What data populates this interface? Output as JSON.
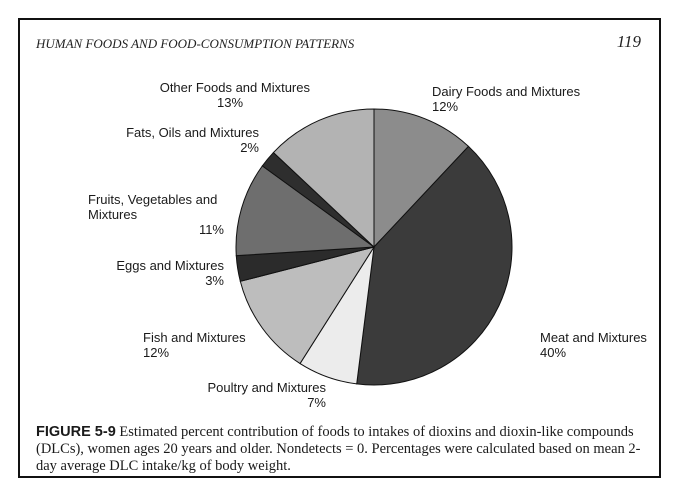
{
  "header": {
    "title": "HUMAN FOODS AND FOOD-CONSUMPTION PATTERNS",
    "page_number": "119"
  },
  "chart_data": {
    "type": "pie",
    "categories": [
      "Dairy Foods and Mixtures",
      "Meat and Mixtures",
      "Poultry and Mixtures",
      "Fish and Mixtures",
      "Eggs and Mixtures",
      "Fruits, Vegetables and Mixtures",
      "Fats, Oils and Mixtures",
      "Other Foods and Mixtures"
    ],
    "values": [
      12,
      40,
      7,
      12,
      3,
      11,
      2,
      13
    ],
    "value_labels": [
      "12%",
      "40%",
      "7%",
      "12%",
      "3%",
      "11%",
      "2%",
      "13%"
    ],
    "colors": [
      "#8c8c8c",
      "#3b3b3b",
      "#ececec",
      "#bdbdbd",
      "#2b2b2b",
      "#6e6e6e",
      "#2e2e2e",
      "#b3b3b3"
    ]
  },
  "caption": {
    "label": "FIGURE 5-9",
    "text": "Estimated percent contribution of foods to intakes of dioxins and dioxin-like compounds (DLCs), women ages 20 years and older. Nondetects = 0. Percentages were calculated based on mean 2-day average DLC intake/kg of body weight."
  }
}
